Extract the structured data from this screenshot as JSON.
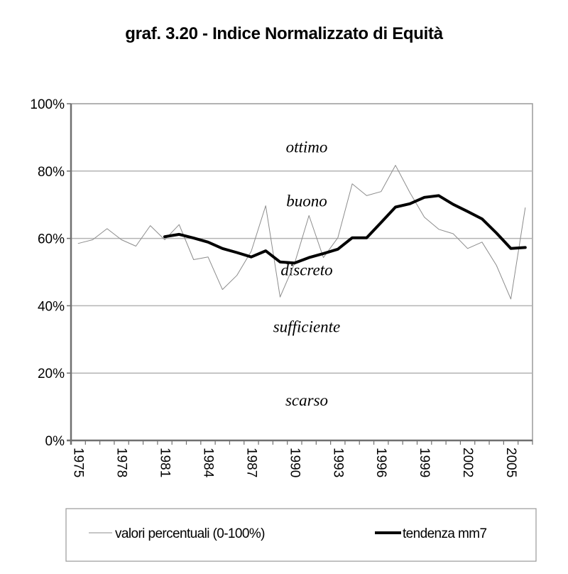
{
  "title": "graf. 3.20 - Indice Normalizzato di  Equità",
  "chart_data": {
    "type": "line",
    "title": "graf. 3.20 - Indice Normalizzato di  Equità",
    "xlabel": "",
    "ylabel": "",
    "ylim": [
      0,
      100
    ],
    "y_ticks": [
      "0%",
      "20%",
      "40%",
      "60%",
      "80%",
      "100%"
    ],
    "x_tick_labels": [
      "1975",
      "1978",
      "1981",
      "1984",
      "1987",
      "1990",
      "1993",
      "1996",
      "1999",
      "2002",
      "2005"
    ],
    "grid": true,
    "legend_position": "bottom",
    "x": [
      1975,
      1976,
      1977,
      1978,
      1979,
      1980,
      1981,
      1982,
      1983,
      1984,
      1985,
      1986,
      1987,
      1988,
      1989,
      1990,
      1991,
      1992,
      1993,
      1994,
      1995,
      1996,
      1997,
      1998,
      1999,
      2000,
      2001,
      2002,
      2003,
      2004,
      2005,
      2006
    ],
    "series": [
      {
        "name": "valori percentuali (0-100%)",
        "color": "#8c8c8c",
        "width": 1,
        "values": [
          58.5,
          59.6,
          62.9,
          59.6,
          57.7,
          63.8,
          59.6,
          64.1,
          53.7,
          54.5,
          44.8,
          49.0,
          56.2,
          69.7,
          42.6,
          52.5,
          66.8,
          54.3,
          60.2,
          76.2,
          72.7,
          73.9,
          81.7,
          73.6,
          66.3,
          62.7,
          61.4,
          57.0,
          58.9,
          52.0,
          42.0,
          69.1
        ]
      },
      {
        "name": "tendenza mm7",
        "color": "#000000",
        "width": 4,
        "values": [
          null,
          null,
          null,
          null,
          null,
          null,
          60.5,
          61.2,
          60.1,
          58.9,
          57.0,
          55.8,
          54.5,
          56.3,
          53.0,
          52.7,
          54.3,
          55.5,
          56.8,
          60.2,
          60.2,
          64.7,
          69.3,
          70.3,
          72.2,
          72.7,
          70.1,
          68.0,
          65.8,
          61.6,
          57.0,
          57.3
        ]
      }
    ],
    "bands": [
      {
        "label": "ottimo",
        "y": 87
      },
      {
        "label": "buono",
        "y": 71
      },
      {
        "label": "discreto",
        "y": 50.5
      },
      {
        "label": "sufficiente",
        "y": 33.7
      },
      {
        "label": "scarso",
        "y": 11.8
      }
    ]
  },
  "legend": {
    "items": [
      {
        "label": "valori percentuali (0-100%)",
        "color": "#8c8c8c",
        "width": 1
      },
      {
        "label": "tendenza mm7",
        "color": "#000000",
        "width": 4
      }
    ]
  }
}
